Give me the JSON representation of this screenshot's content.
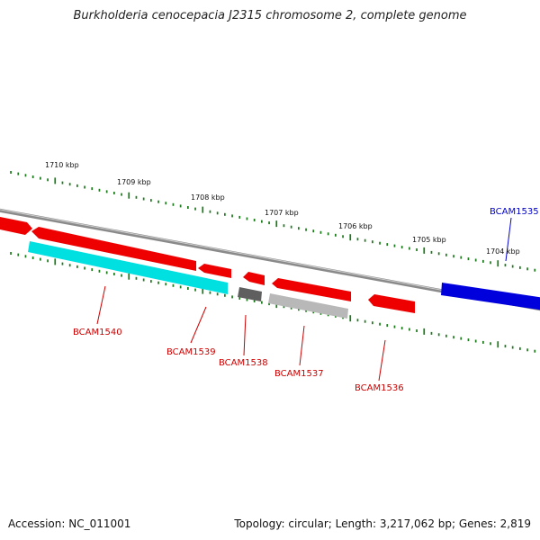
{
  "title": "Burkholderia cenocepacia J2315 chromosome 2, complete genome",
  "footer": {
    "accession": "Accession: NC_011001",
    "info": "Topology: circular; Length: 3,217,062 bp; Genes: 2,819"
  },
  "colors": {
    "gene_forward": "#ee0000",
    "gene_reverse_highlight": "#00e5e5",
    "gene_grey_dark": "#666666",
    "gene_grey_light": "#bbbbbb",
    "gene_blue": "#0000dd",
    "tick": "#1a7a1a",
    "backbone": "#888888",
    "label_red": "#cc0000",
    "label_blue": "#0000cc"
  },
  "kbp_labels": [
    "1710 kbp",
    "1709 kbp",
    "1708 kbp",
    "1707 kbp",
    "1706 kbp",
    "1705 kbp",
    "1704 kbp"
  ],
  "genes": [
    {
      "id": "g0",
      "name": "",
      "color": "#ee0000",
      "arrow": "right"
    },
    {
      "id": "g1540",
      "name": "",
      "color": "#ee0000",
      "arrow": "left"
    },
    {
      "id": "g1540b",
      "name": "BCAM1540",
      "color": "#00e5e5",
      "arrow": "none"
    },
    {
      "id": "g1539",
      "name": "BCAM1539",
      "color": "#ee0000",
      "arrow": "left"
    },
    {
      "id": "g1538",
      "name": "BCAM1538",
      "color": "#666666",
      "arrow": "none"
    },
    {
      "id": "g1538r",
      "name": "",
      "color": "#ee0000",
      "arrow": "left"
    },
    {
      "id": "g1537r",
      "name": "",
      "color": "#ee0000",
      "arrow": "left"
    },
    {
      "id": "g1537",
      "name": "BCAM1537",
      "color": "#bbbbbb",
      "arrow": "none"
    },
    {
      "id": "g1536",
      "name": "BCAM1536",
      "color": "#ee0000",
      "arrow": "left"
    },
    {
      "id": "g1535",
      "name": "BCAM1535",
      "color": "#0000dd",
      "arrow": "none"
    }
  ]
}
